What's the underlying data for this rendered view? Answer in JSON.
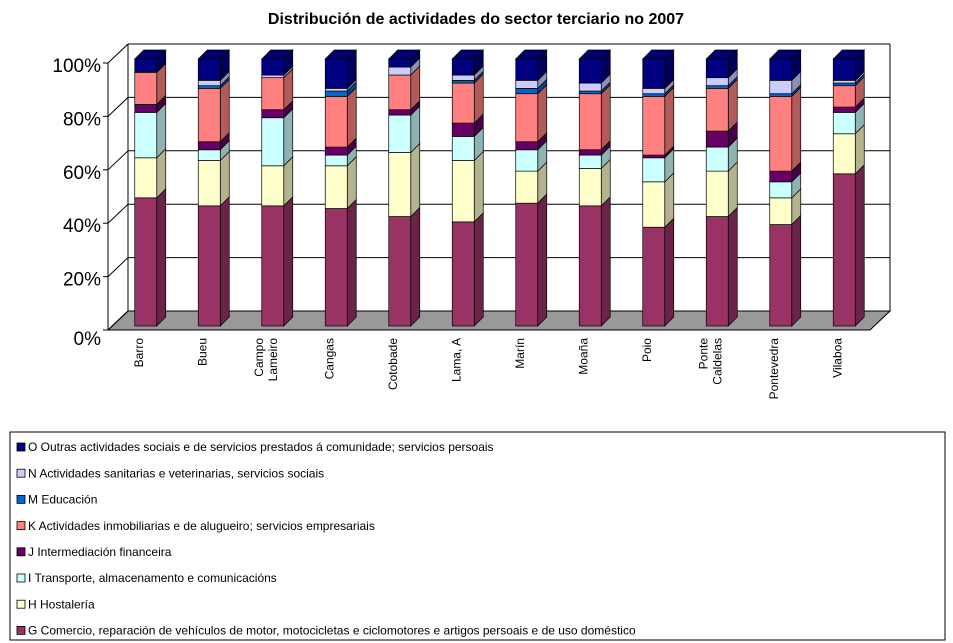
{
  "chart_data": {
    "type": "bar",
    "stacked": true,
    "percent": true,
    "three_d": true,
    "title": "Distribución de actividades do sector terciario no 2007",
    "categories": [
      "Barro",
      "Bueu",
      "Campo Lameiro",
      "Cangas",
      "Cotobade",
      "Lama, A",
      "Marín",
      "Moaña",
      "Poio",
      "Ponte Caldelas",
      "Pontevedra",
      "Vilaboa"
    ],
    "series": [
      {
        "name": "O Outras actividades sociais e de servicios prestados á comunidade; servicios persoais",
        "color": "#000080",
        "values": [
          5,
          8,
          6,
          11,
          3,
          6,
          8,
          9,
          11,
          7,
          8,
          8
        ]
      },
      {
        "name": "N Actividades sanitarias e veterinarias, servicios sociais",
        "color": "#ccccff",
        "values": [
          0,
          2,
          1,
          1,
          3,
          2,
          3,
          3,
          2,
          3,
          5,
          1
        ]
      },
      {
        "name": "M Educación",
        "color": "#0066cc",
        "values": [
          0,
          1,
          0,
          2,
          0,
          1,
          2,
          1,
          1,
          1,
          1,
          1
        ]
      },
      {
        "name": "K Actividades inmobiliarias e de alugueiro; servicios empresariais",
        "color": "#ff8080",
        "values": [
          12,
          20,
          12,
          19,
          13,
          15,
          18,
          21,
          22,
          16,
          28,
          8
        ]
      },
      {
        "name": "J Intermediación financeira",
        "color": "#660066",
        "values": [
          3,
          3,
          3,
          3,
          2,
          5,
          3,
          2,
          1,
          6,
          4,
          2
        ]
      },
      {
        "name": "I Transporte, almacenamento e comunicacións",
        "color": "#ccffff",
        "values": [
          17,
          4,
          18,
          4,
          14,
          9,
          8,
          5,
          9,
          9,
          6,
          8
        ]
      },
      {
        "name": "H Hostalería",
        "color": "#ffffcc",
        "values": [
          15,
          17,
          15,
          16,
          24,
          23,
          12,
          14,
          17,
          17,
          10,
          15
        ]
      },
      {
        "name": "G Comercio, reparación de vehículos de motor, motocicletas e ciclomotores e artigos persoais e de uso doméstico",
        "color": "#993366",
        "values": [
          48,
          45,
          45,
          44,
          41,
          39,
          46,
          45,
          37,
          41,
          38,
          57
        ]
      }
    ],
    "ylim": [
      0,
      100
    ],
    "yticks": [
      {
        "value": 0,
        "label": "0%"
      },
      {
        "value": 20,
        "label": "20%"
      },
      {
        "value": 40,
        "label": "40%"
      },
      {
        "value": 60,
        "label": "60%"
      },
      {
        "value": 80,
        "label": "80%"
      },
      {
        "value": 100,
        "label": "100%"
      }
    ],
    "grid": true,
    "legend": "bottom"
  }
}
